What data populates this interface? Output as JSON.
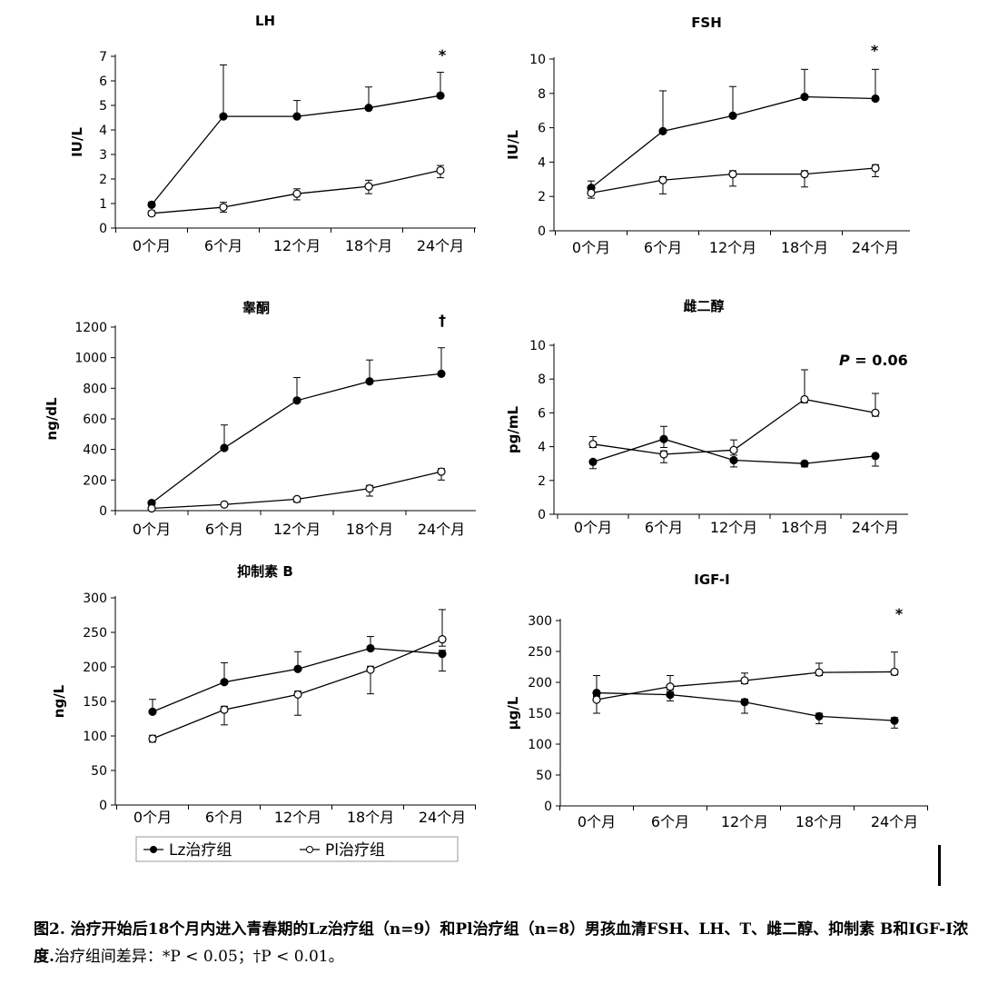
{
  "chart_data": [
    {
      "type": "line",
      "title": "LH",
      "ylabel": "IU/L",
      "ylim": [
        0,
        7
      ],
      "yticks": [
        0,
        1,
        2,
        3,
        4,
        5,
        6,
        7
      ],
      "categories": [
        "0个月",
        "6个月",
        "12个月",
        "18个月",
        "24个月"
      ],
      "series": [
        {
          "name": "Lz治疗组",
          "marker": "filled",
          "values": [
            0.95,
            4.55,
            4.55,
            4.9,
            5.4
          ],
          "err_up": [
            0.1,
            2.1,
            0.65,
            0.85,
            0.95
          ],
          "err_down": [
            0,
            0,
            0,
            0,
            0
          ]
        },
        {
          "name": "Pl治疗组",
          "marker": "open",
          "values": [
            0.6,
            0.85,
            1.4,
            1.7,
            2.35
          ],
          "err_up": [
            0.1,
            0.2,
            0.2,
            0.25,
            0.2
          ],
          "err_down": [
            0.1,
            0.2,
            0.25,
            0.3,
            0.3
          ]
        }
      ],
      "annotation": "*"
    },
    {
      "type": "line",
      "title": "FSH",
      "ylabel": "IU/L",
      "ylim": [
        0,
        10
      ],
      "yticks": [
        0,
        2,
        4,
        6,
        8,
        10
      ],
      "categories": [
        "0个月",
        "6个月",
        "12个月",
        "18个月",
        "24个月"
      ],
      "series": [
        {
          "name": "Lz治疗组",
          "marker": "filled",
          "values": [
            2.5,
            5.8,
            6.7,
            7.8,
            7.7
          ],
          "err_up": [
            0.4,
            2.35,
            1.7,
            1.6,
            1.7
          ],
          "err_down": [
            0,
            0,
            0,
            0,
            0
          ]
        },
        {
          "name": "Pl治疗组",
          "marker": "open",
          "values": [
            2.2,
            2.95,
            3.3,
            3.3,
            3.65
          ],
          "err_up": [
            0.2,
            0.2,
            0.2,
            0.2,
            0.2
          ],
          "err_down": [
            0.3,
            0.8,
            0.7,
            0.75,
            0.5
          ]
        }
      ],
      "annotation": "*"
    },
    {
      "type": "line",
      "title": "睾酮",
      "ylabel": "ng/dL",
      "ylim": [
        0,
        1200
      ],
      "yticks": [
        0,
        200,
        400,
        600,
        800,
        1000,
        1200
      ],
      "categories": [
        "0个月",
        "6个月",
        "12个月",
        "18个月",
        "24个月"
      ],
      "series": [
        {
          "name": "Lz治疗组",
          "marker": "filled",
          "values": [
            50,
            410,
            720,
            845,
            895
          ],
          "err_up": [
            10,
            150,
            150,
            140,
            170
          ],
          "err_down": [
            0,
            0,
            0,
            0,
            0
          ]
        },
        {
          "name": "Pl治疗组",
          "marker": "open",
          "values": [
            15,
            40,
            75,
            145,
            255
          ],
          "err_up": [
            5,
            10,
            10,
            20,
            20
          ],
          "err_down": [
            5,
            10,
            20,
            50,
            55
          ]
        }
      ],
      "annotation": "†"
    },
    {
      "type": "line",
      "title": "雌二醇",
      "ylabel": "pg/mL",
      "ylim": [
        0,
        10
      ],
      "yticks": [
        0,
        2,
        4,
        6,
        8,
        10
      ],
      "categories": [
        "0个月",
        "6个月",
        "12个月",
        "18个月",
        "24个月"
      ],
      "series": [
        {
          "name": "Lz治疗组",
          "marker": "filled",
          "values": [
            3.1,
            4.45,
            3.2,
            3.0,
            3.45
          ],
          "err_up": [
            0.1,
            0.75,
            0.1,
            0.1,
            0.1
          ],
          "err_down": [
            0.4,
            0.5,
            0.4,
            0.2,
            0.6
          ]
        },
        {
          "name": "Pl治疗组",
          "marker": "open",
          "values": [
            4.15,
            3.55,
            3.8,
            6.8,
            6.0
          ],
          "err_up": [
            0.45,
            0.2,
            0.6,
            1.75,
            1.15
          ],
          "err_down": [
            0.2,
            0.5,
            0.3,
            0.2,
            0.2
          ]
        }
      ],
      "annotation": "P = 0.06"
    },
    {
      "type": "line",
      "title": "抑制素 B",
      "ylabel": "ng/L",
      "ylim": [
        0,
        300
      ],
      "yticks": [
        0,
        50,
        100,
        150,
        200,
        250,
        300
      ],
      "categories": [
        "0个月",
        "6个月",
        "12个月",
        "18个月",
        "24个月"
      ],
      "series": [
        {
          "name": "Lz治疗组",
          "marker": "filled",
          "values": [
            135,
            178,
            197,
            227,
            219
          ],
          "err_up": [
            18,
            28,
            25,
            17,
            5
          ],
          "err_down": [
            0,
            0,
            0,
            0,
            25
          ]
        },
        {
          "name": "Pl治疗组",
          "marker": "open",
          "values": [
            96,
            138,
            160,
            196,
            240
          ],
          "err_up": [
            5,
            5,
            5,
            5,
            43
          ],
          "err_down": [
            5,
            22,
            30,
            35,
            10
          ]
        }
      ],
      "annotation": ""
    },
    {
      "type": "line",
      "title": "IGF-I",
      "ylabel": "µg/L",
      "ylim": [
        0,
        300
      ],
      "yticks": [
        0,
        50,
        100,
        150,
        200,
        250,
        300
      ],
      "categories": [
        "0个月",
        "6个月",
        "12个月",
        "18个月",
        "24个月"
      ],
      "series": [
        {
          "name": "Lz治疗组",
          "marker": "filled",
          "values": [
            183,
            180,
            168,
            145,
            138
          ],
          "err_up": [
            28,
            5,
            5,
            5,
            5
          ],
          "err_down": [
            5,
            10,
            18,
            12,
            12
          ]
        },
        {
          "name": "Pl治疗组",
          "marker": "open",
          "values": [
            172,
            193,
            203,
            216,
            217
          ],
          "err_up": [
            5,
            18,
            12,
            15,
            32
          ],
          "err_down": [
            22,
            5,
            5,
            5,
            5
          ]
        }
      ],
      "annotation": "*"
    }
  ],
  "legend": {
    "items": [
      {
        "label": "Lz治疗组",
        "marker": "filled"
      },
      {
        "label": "Pl治疗组",
        "marker": "open"
      }
    ]
  },
  "caption": {
    "bold": "图2. 治疗开始后18个月内进入青春期的Lz治疗组（n=9）和Pl治疗组（n=8）男孩血清FSH、LH、T、雌二醇、抑制素 B和IGF-I浓度.",
    "note": "治疗组间差异：*P < 0.05；†P < 0.01。"
  }
}
